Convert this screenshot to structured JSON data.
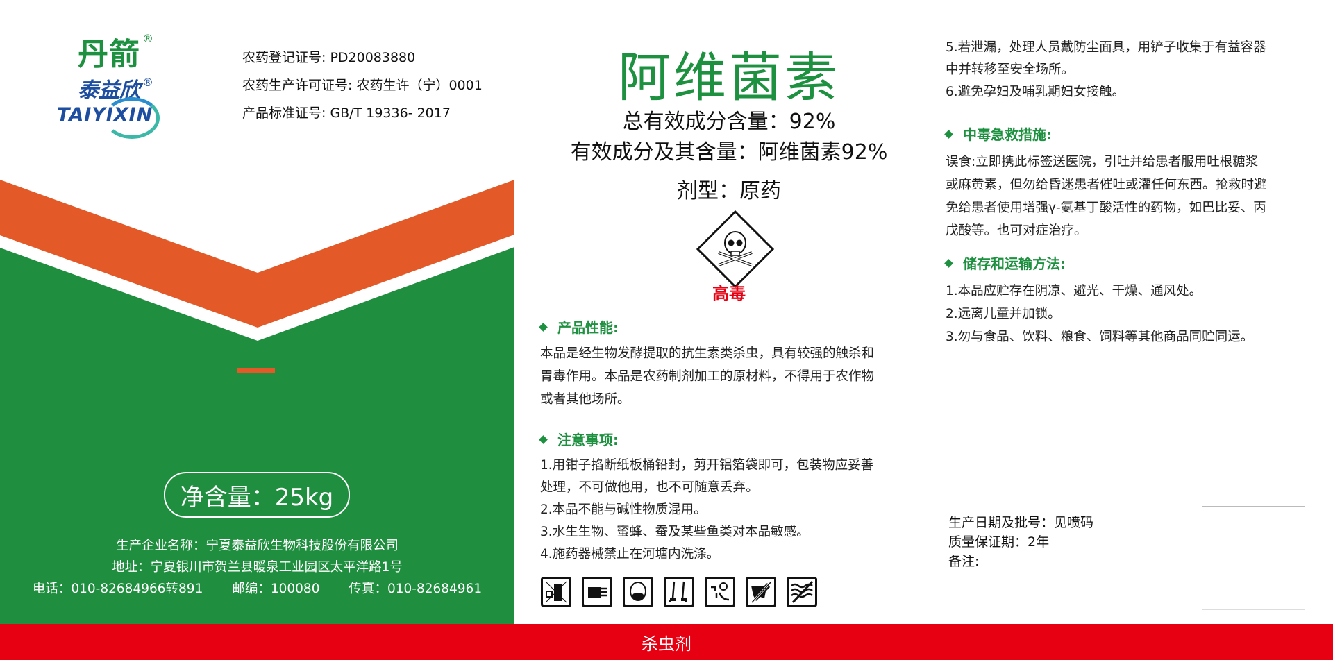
{
  "colors": {
    "green": "#1f8f3f",
    "orange": "#e35a28",
    "red": "#e60012",
    "title_green": "#1e9140",
    "brand_blue": "#1d4ea0"
  },
  "brand": {
    "name_cn": "丹箭",
    "company_cn": "泰益欣",
    "company_en": "TAIYIXIN",
    "registered_mark": "®"
  },
  "registration": [
    "农药登记证号: PD20083880",
    "农药生产许可证号: 农药生许（宁）0001",
    "产品标准证号: GB/T 19336- 2017"
  ],
  "product": {
    "title": "阿维菌素",
    "total_content": "总有效成分含量：92%",
    "active_ingredient": "有效成分及其含量：阿维菌素92%",
    "formulation": "剂型：原药",
    "hazard_icon": "skull-crossbones-icon",
    "toxicity": "高毒"
  },
  "net_content": "净含量：25kg",
  "manufacturer": {
    "name": "生产企业名称：宁夏泰益欣生物科技股份有限公司",
    "address": "地址：宁夏银川市贺兰县暖泉工业园区太平洋路1号",
    "phone": "电话：010-82684966转891",
    "postcode": "邮编：100080",
    "fax": "传真：010-82684961"
  },
  "sections": {
    "performance": {
      "heading": "产品性能:",
      "lines": [
        "本品是经生物发酵提取的抗生素类杀虫，具有较强的触杀和",
        "胃毒作用。本品是农药制剂加工的原材料，不得用于农作物",
        "或者其他场所。"
      ]
    },
    "precautions": {
      "heading": "注意事项:",
      "lines": [
        "1.用钳子掐断纸板桶铅封，剪开铝箔袋即可，包装物应妥善",
        "处理，不可做他用，也不可随意丢弃。",
        "2.本品不能与碱性物质混用。",
        "3.水生生物、蜜蜂、蚕及某些鱼类对本品敏感。",
        "4.施药器械禁止在河塘内洗涤。"
      ],
      "continued": [
        "5.若泄漏，处理人员戴防尘面具，用铲子收集于有益容器",
        "中并转移至安全场所。",
        "6.避免孕妇及哺乳期妇女接触。"
      ]
    },
    "first_aid": {
      "heading": "中毒急救措施:",
      "lines": [
        "误食:立即携此标签送医院，引吐并给患者服用吐根糖浆",
        "或麻黄素，但勿给昏迷患者催吐或灌任何东西。抢救时避",
        "免给患者使用增强γ-氨基丁酸活性的药物，如巴比妥、丙",
        "戊酸等。也可对症治疗。"
      ]
    },
    "storage": {
      "heading": "储存和运输方法:",
      "lines": [
        "1.本品应贮存在阴凉、避光、干燥、通风处。",
        "2.远离儿童并加锁。",
        "3.勿与食品、饮料、粮食、饲料等其他商品同贮同运。"
      ]
    }
  },
  "pictograms": [
    "store-locked-icon",
    "wear-gloves-icon",
    "wear-mask-icon",
    "wear-boots-icon",
    "wash-after-use-icon",
    "harmful-to-livestock-icon",
    "harmful-to-fish-icon"
  ],
  "batch": {
    "production_date": "生产日期及批号：见喷码",
    "shelf_life": "质量保证期：2年",
    "remarks": "备注:"
  },
  "category": "杀虫剂"
}
